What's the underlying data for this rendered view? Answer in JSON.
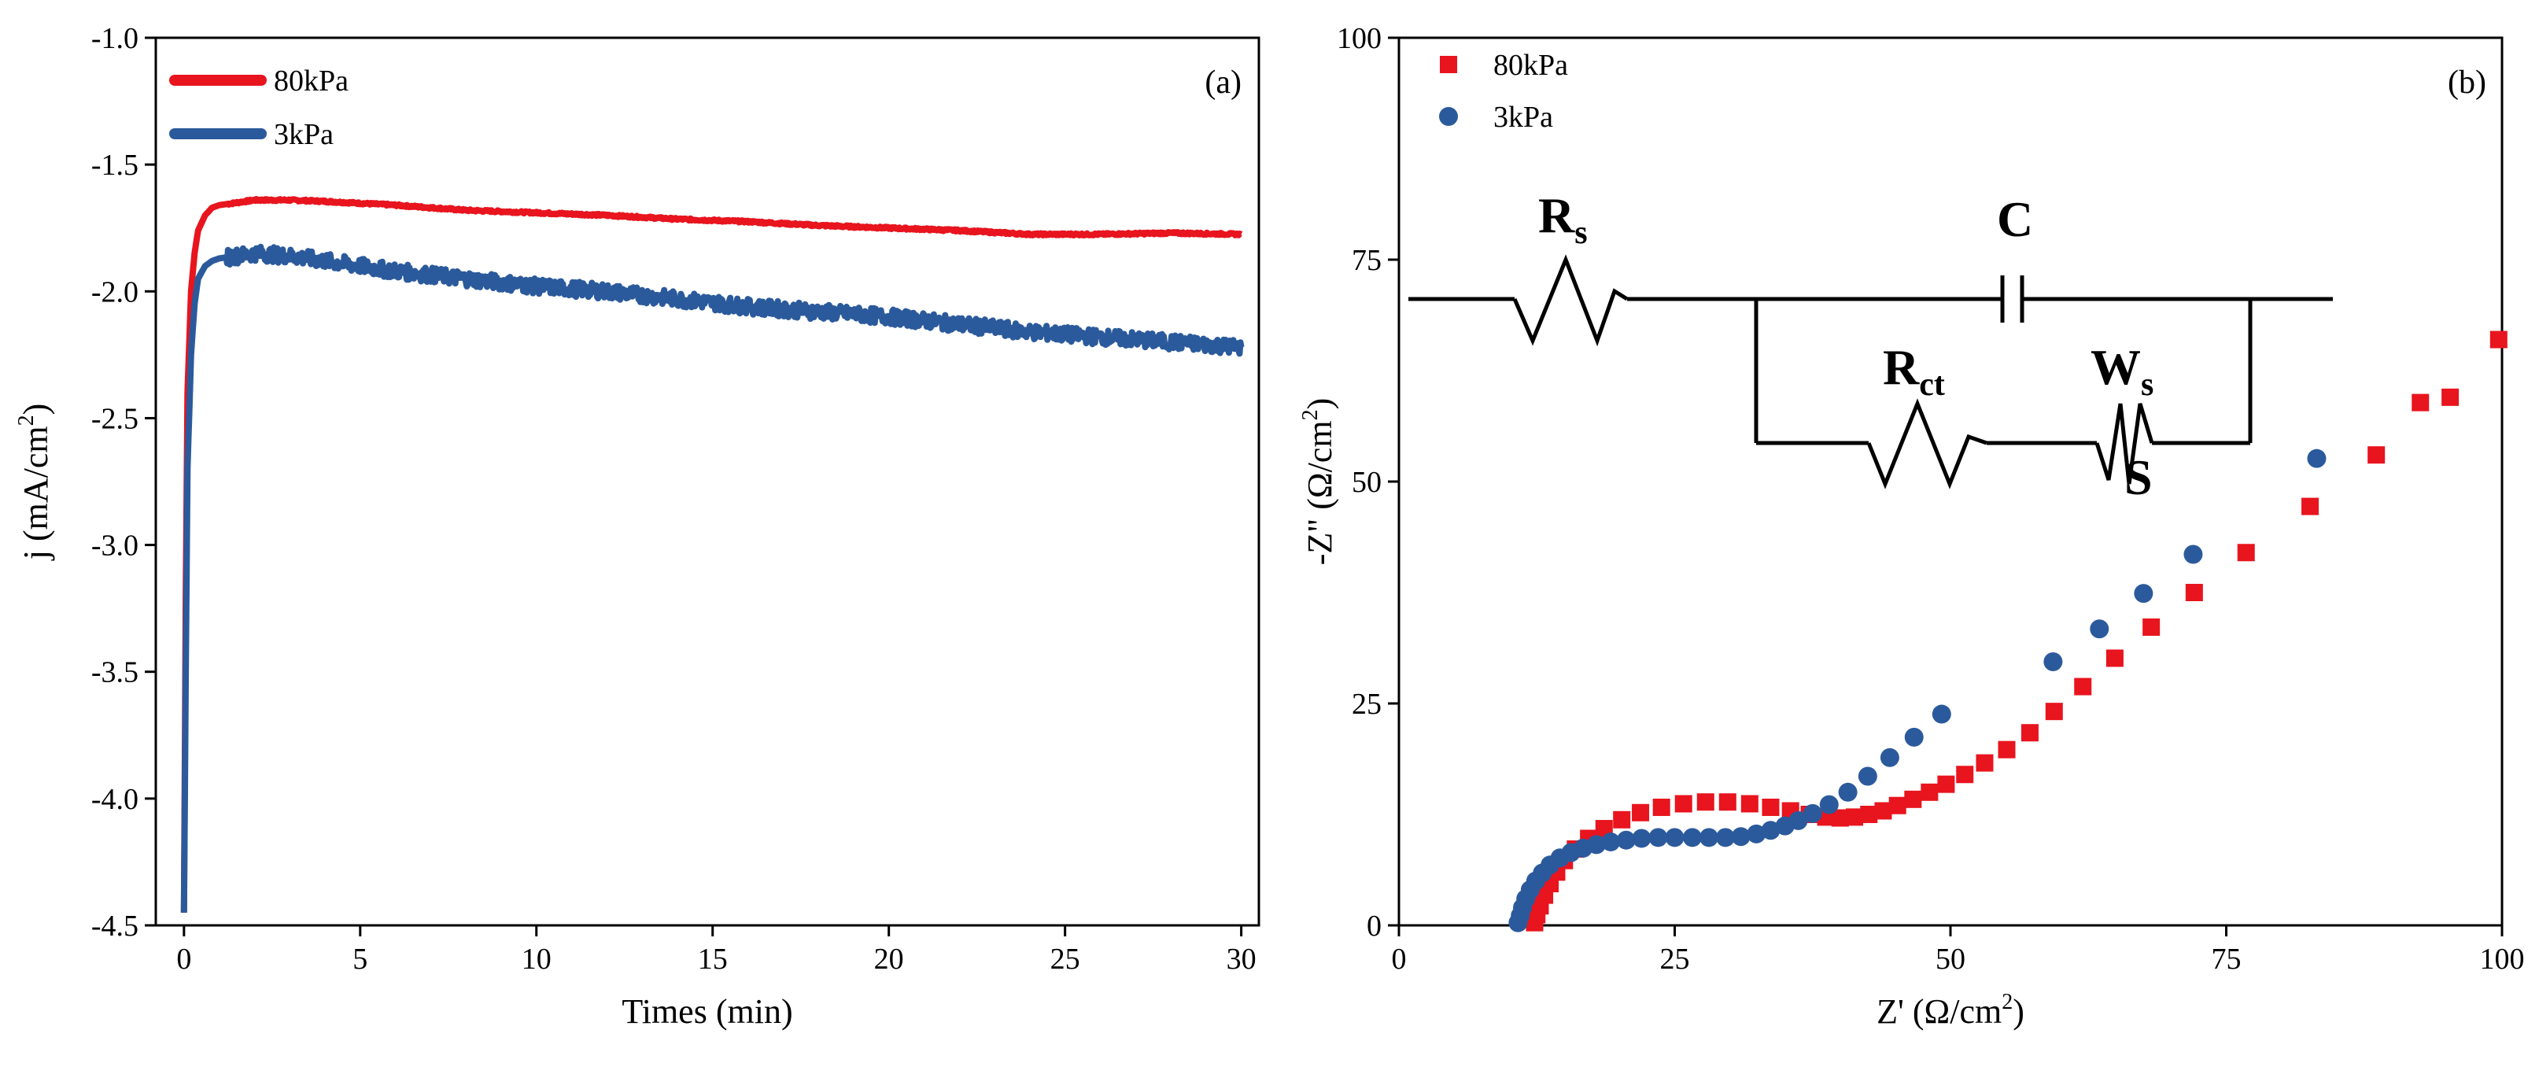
{
  "chart_data": [
    {
      "id": "a",
      "type": "line",
      "panel_label": "(a)",
      "xlabel": "Times (min)",
      "ylabel": "j (mA/cm",
      "ylabel_sup": "2",
      "ylabel_close": ")",
      "xlim": [
        -0.8,
        30.5
      ],
      "ylim": [
        -4.5,
        -1.0
      ],
      "x_ticks": [
        0,
        5,
        10,
        15,
        20,
        25,
        30
      ],
      "x_tick_labels": [
        "0",
        "5",
        "10",
        "15",
        "20",
        "25",
        "30"
      ],
      "y_ticks": [
        -1.0,
        -1.5,
        -2.0,
        -2.5,
        -3.0,
        -3.5,
        -4.0,
        -4.5
      ],
      "y_tick_labels": [
        "-1.0",
        "-1.5",
        "-2.0",
        "-2.5",
        "-3.0",
        "-3.5",
        "-4.0",
        "-4.5"
      ],
      "legend_position": "top-left",
      "series": [
        {
          "name": "80kPa",
          "color": "#e8141e",
          "noise": 0.004,
          "x": [
            0,
            0.05,
            0.1,
            0.2,
            0.3,
            0.4,
            0.6,
            0.8,
            1.0,
            1.5,
            2,
            3,
            4,
            6,
            8,
            10,
            12,
            14,
            16,
            18,
            20,
            22,
            24,
            26,
            28,
            30
          ],
          "y": [
            -4.45,
            -3.2,
            -2.4,
            -2.0,
            -1.85,
            -1.76,
            -1.7,
            -1.67,
            -1.66,
            -1.65,
            -1.64,
            -1.64,
            -1.645,
            -1.66,
            -1.68,
            -1.69,
            -1.7,
            -1.715,
            -1.725,
            -1.74,
            -1.75,
            -1.76,
            -1.775,
            -1.775,
            -1.77,
            -1.775
          ]
        },
        {
          "name": "3kPa",
          "color": "#2b5a9c",
          "noise": 0.03,
          "x": [
            0,
            0.05,
            0.1,
            0.2,
            0.3,
            0.4,
            0.6,
            0.8,
            1.0,
            1.5,
            2,
            3,
            4,
            6,
            8,
            10,
            12,
            14,
            16,
            18,
            20,
            22,
            24,
            26,
            28,
            30
          ],
          "y": [
            -4.45,
            -3.5,
            -2.7,
            -2.25,
            -2.05,
            -1.95,
            -1.9,
            -1.88,
            -1.87,
            -1.86,
            -1.85,
            -1.86,
            -1.88,
            -1.92,
            -1.95,
            -1.98,
            -2.0,
            -2.03,
            -2.06,
            -2.08,
            -2.1,
            -2.13,
            -2.16,
            -2.18,
            -2.2,
            -2.22
          ]
        }
      ]
    },
    {
      "id": "b",
      "type": "scatter",
      "panel_label": "(b)",
      "xlabel": "Z' (Ω/cm",
      "xlabel_sup": "2",
      "xlabel_close": ")",
      "ylabel": "-Z\" (Ω/cm",
      "ylabel_sup": "2",
      "ylabel_close": ")",
      "xlim": [
        0,
        100
      ],
      "ylim": [
        0,
        100
      ],
      "x_ticks": [
        0,
        25,
        50,
        75,
        100
      ],
      "x_tick_labels": [
        "0",
        "25",
        "50",
        "75",
        "100"
      ],
      "y_ticks": [
        0,
        25,
        50,
        75,
        100
      ],
      "y_tick_labels": [
        "0",
        "25",
        "50",
        "75",
        "100"
      ],
      "legend_position": "top-left",
      "series": [
        {
          "name": "80kPa",
          "color": "#e8141e",
          "marker": "square",
          "x": [
            12.3,
            12.5,
            12.8,
            13.2,
            13.7,
            14.3,
            15.0,
            16.0,
            17.2,
            18.6,
            20.2,
            21.9,
            23.8,
            25.8,
            27.8,
            29.8,
            31.8,
            33.7,
            35.5,
            37.2,
            38.7,
            40.0,
            41.3,
            42.6,
            43.9,
            45.2,
            46.6,
            48.1,
            49.6,
            51.3,
            53.1,
            55.1,
            57.2,
            59.4,
            62.0,
            64.9,
            68.2,
            72.1,
            76.8,
            82.6,
            88.6,
            92.6,
            95.3,
            99.7
          ],
          "y": [
            0.3,
            1.2,
            2.2,
            3.4,
            4.7,
            6.0,
            7.3,
            8.6,
            9.8,
            10.9,
            11.9,
            12.7,
            13.3,
            13.7,
            13.9,
            13.9,
            13.7,
            13.3,
            12.9,
            12.5,
            12.2,
            12.1,
            12.2,
            12.5,
            12.9,
            13.5,
            14.2,
            15.0,
            15.9,
            17.0,
            18.3,
            19.8,
            21.7,
            24.1,
            26.9,
            30.1,
            33.6,
            37.5,
            42.0,
            47.2,
            53.0,
            58.9,
            59.5,
            66.0
          ]
        },
        {
          "name": "3kPa",
          "color": "#2b5a9c",
          "marker": "circle",
          "x": [
            10.8,
            11.0,
            11.2,
            11.5,
            11.9,
            12.4,
            13.0,
            13.7,
            14.6,
            15.6,
            16.7,
            17.9,
            19.2,
            20.6,
            22.0,
            23.5,
            25.0,
            26.6,
            28.1,
            29.6,
            31.0,
            32.4,
            33.7,
            35.0,
            36.2,
            37.5,
            39.0,
            40.7,
            42.5,
            44.5,
            46.7,
            49.2,
            59.3,
            63.5,
            67.5,
            72.0,
            83.2
          ],
          "y": [
            0.3,
            1.1,
            2.0,
            3.0,
            4.0,
            5.0,
            5.9,
            6.8,
            7.6,
            8.2,
            8.7,
            9.1,
            9.4,
            9.6,
            9.8,
            9.9,
            9.9,
            9.9,
            9.9,
            9.9,
            10.0,
            10.3,
            10.7,
            11.2,
            11.8,
            12.6,
            13.6,
            15.0,
            16.8,
            18.9,
            21.2,
            23.8,
            29.7,
            33.4,
            37.4,
            41.8,
            52.6
          ]
        }
      ],
      "circuit": {
        "labels": {
          "rs_main": "R",
          "rs_sub": "s",
          "c_main": "C",
          "rct_main": "R",
          "rct_sub": "ct",
          "ws_main": "W",
          "ws_sub": "s",
          "ws_element": "S"
        }
      }
    }
  ]
}
